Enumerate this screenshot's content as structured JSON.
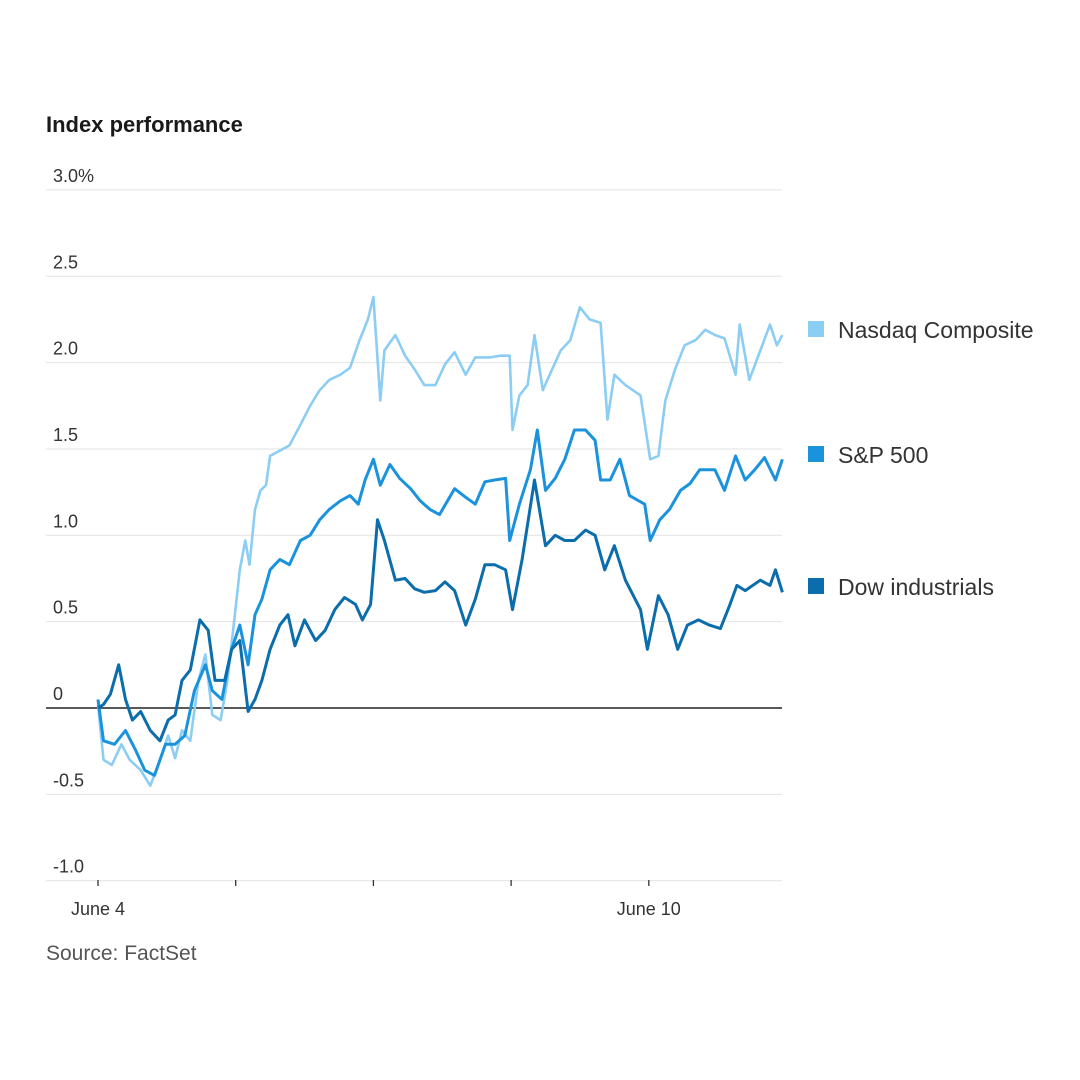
{
  "chart_data": {
    "type": "line",
    "title": "Index performance",
    "source": "Source: FactSet",
    "xlabel": "",
    "ylabel": "",
    "x_unit": "trading days since June 4 open",
    "xlim": [
      0,
      4.97
    ],
    "ylim": [
      -1.0,
      3.0
    ],
    "grid": true,
    "y_ticks": [
      {
        "value": 3.0,
        "label": "3.0%"
      },
      {
        "value": 2.5,
        "label": "2.5"
      },
      {
        "value": 2.0,
        "label": "2.0"
      },
      {
        "value": 1.5,
        "label": "1.5"
      },
      {
        "value": 1.0,
        "label": "1.0"
      },
      {
        "value": 0.5,
        "label": "0.5"
      },
      {
        "value": 0,
        "label": "0"
      },
      {
        "value": -0.5,
        "label": "-0.5"
      },
      {
        "value": -1.0,
        "label": "-1.0"
      }
    ],
    "x_ticks": [
      {
        "value": 0,
        "label": "June 4"
      },
      {
        "value": 1,
        "label": ""
      },
      {
        "value": 2,
        "label": ""
      },
      {
        "value": 3,
        "label": ""
      },
      {
        "value": 4,
        "label": "June 10"
      }
    ],
    "legend_position": "right",
    "series": [
      {
        "name": "Nasdaq Composite",
        "color": "#8ccdf4",
        "x": [
          0,
          0.04,
          0.1,
          0.17,
          0.23,
          0.31,
          0.38,
          0.45,
          0.51,
          0.56,
          0.61,
          0.67,
          0.73,
          0.78,
          0.83,
          0.89,
          0.94,
          0.99,
          1.03,
          1.07,
          1.1,
          1.14,
          1.18,
          1.22,
          1.25,
          1.32,
          1.39,
          1.47,
          1.54,
          1.61,
          1.68,
          1.76,
          1.83,
          1.9,
          1.96,
          2.0,
          2.05,
          2.08,
          2.16,
          2.23,
          2.3,
          2.37,
          2.45,
          2.52,
          2.59,
          2.67,
          2.74,
          2.85,
          2.92,
          2.99,
          3.01,
          3.06,
          3.12,
          3.17,
          3.23,
          3.28,
          3.36,
          3.43,
          3.5,
          3.57,
          3.65,
          3.7,
          3.75,
          3.83,
          3.94,
          4.01,
          4.07,
          4.12,
          4.19,
          4.26,
          4.34,
          4.41,
          4.48,
          4.55,
          4.63,
          4.66,
          4.73,
          4.81,
          4.88,
          4.93,
          4.97
        ],
        "values": [
          0.02,
          -0.3,
          -0.33,
          -0.21,
          -0.3,
          -0.36,
          -0.45,
          -0.3,
          -0.16,
          -0.29,
          -0.13,
          -0.19,
          0.16,
          0.31,
          -0.04,
          -0.07,
          0.16,
          0.51,
          0.8,
          0.97,
          0.83,
          1.15,
          1.26,
          1.29,
          1.46,
          1.49,
          1.52,
          1.64,
          1.75,
          1.84,
          1.9,
          1.93,
          1.97,
          2.13,
          2.25,
          2.38,
          1.78,
          2.07,
          2.16,
          2.04,
          1.96,
          1.87,
          1.87,
          1.99,
          2.06,
          1.93,
          2.03,
          2.03,
          2.04,
          2.04,
          1.61,
          1.81,
          1.87,
          2.16,
          1.84,
          1.93,
          2.07,
          2.13,
          2.32,
          2.25,
          2.23,
          1.67,
          1.93,
          1.87,
          1.81,
          1.44,
          1.46,
          1.78,
          1.96,
          2.1,
          2.13,
          2.19,
          2.16,
          2.14,
          1.93,
          2.22,
          1.9,
          2.07,
          2.22,
          2.1,
          2.16
        ]
      },
      {
        "name": "S&P 500",
        "color": "#1a93dc",
        "x": [
          0,
          0.04,
          0.12,
          0.2,
          0.27,
          0.34,
          0.41,
          0.49,
          0.56,
          0.63,
          0.7,
          0.78,
          0.83,
          0.9,
          0.97,
          1.03,
          1.09,
          1.14,
          1.19,
          1.25,
          1.32,
          1.39,
          1.47,
          1.54,
          1.61,
          1.68,
          1.76,
          1.83,
          1.89,
          1.94,
          2.0,
          2.05,
          2.12,
          2.19,
          2.27,
          2.34,
          2.41,
          2.48,
          2.59,
          2.67,
          2.74,
          2.81,
          2.88,
          2.96,
          2.99,
          3.06,
          3.14,
          3.19,
          3.25,
          3.32,
          3.39,
          3.46,
          3.54,
          3.61,
          3.65,
          3.72,
          3.79,
          3.86,
          3.97,
          4.01,
          4.08,
          4.15,
          4.23,
          4.3,
          4.37,
          4.48,
          4.55,
          4.63,
          4.7,
          4.77,
          4.84,
          4.92,
          4.97
        ],
        "values": [
          0.05,
          -0.19,
          -0.21,
          -0.13,
          -0.24,
          -0.36,
          -0.39,
          -0.21,
          -0.21,
          -0.16,
          0.1,
          0.25,
          0.1,
          0.05,
          0.34,
          0.48,
          0.25,
          0.54,
          0.63,
          0.8,
          0.86,
          0.83,
          0.97,
          1.0,
          1.09,
          1.15,
          1.2,
          1.23,
          1.18,
          1.32,
          1.44,
          1.29,
          1.41,
          1.33,
          1.27,
          1.2,
          1.15,
          1.12,
          1.27,
          1.22,
          1.18,
          1.31,
          1.32,
          1.33,
          0.97,
          1.18,
          1.38,
          1.61,
          1.26,
          1.33,
          1.44,
          1.61,
          1.61,
          1.55,
          1.32,
          1.32,
          1.44,
          1.23,
          1.18,
          0.97,
          1.09,
          1.15,
          1.26,
          1.3,
          1.38,
          1.38,
          1.26,
          1.46,
          1.32,
          1.38,
          1.45,
          1.32,
          1.44
        ]
      },
      {
        "name": "Dow industrials",
        "color": "#0b6dab",
        "x": [
          0,
          0.04,
          0.09,
          0.15,
          0.2,
          0.25,
          0.31,
          0.38,
          0.45,
          0.51,
          0.56,
          0.61,
          0.67,
          0.74,
          0.8,
          0.85,
          0.92,
          0.97,
          1.03,
          1.09,
          1.14,
          1.19,
          1.25,
          1.32,
          1.38,
          1.43,
          1.5,
          1.58,
          1.65,
          1.72,
          1.79,
          1.87,
          1.92,
          1.98,
          2.03,
          2.08,
          2.16,
          2.23,
          2.3,
          2.37,
          2.45,
          2.52,
          2.59,
          2.67,
          2.74,
          2.81,
          2.88,
          2.96,
          3.01,
          3.08,
          3.17,
          3.25,
          3.32,
          3.39,
          3.46,
          3.54,
          3.61,
          3.68,
          3.75,
          3.83,
          3.94,
          3.99,
          4.07,
          4.14,
          4.21,
          4.28,
          4.36,
          4.44,
          4.52,
          4.59,
          4.64,
          4.7,
          4.81,
          4.88,
          4.92,
          4.97
        ],
        "values": [
          0,
          0.02,
          0.08,
          0.25,
          0.05,
          -0.07,
          -0.02,
          -0.13,
          -0.19,
          -0.07,
          -0.04,
          0.16,
          0.22,
          0.51,
          0.45,
          0.16,
          0.16,
          0.34,
          0.39,
          -0.02,
          0.05,
          0.16,
          0.34,
          0.48,
          0.54,
          0.36,
          0.51,
          0.39,
          0.45,
          0.57,
          0.64,
          0.6,
          0.51,
          0.6,
          1.09,
          0.97,
          0.74,
          0.75,
          0.69,
          0.67,
          0.68,
          0.73,
          0.68,
          0.48,
          0.63,
          0.83,
          0.83,
          0.8,
          0.57,
          0.86,
          1.32,
          0.94,
          1.0,
          0.97,
          0.97,
          1.03,
          1.0,
          0.8,
          0.94,
          0.74,
          0.57,
          0.34,
          0.65,
          0.54,
          0.34,
          0.48,
          0.51,
          0.48,
          0.46,
          0.6,
          0.71,
          0.68,
          0.74,
          0.71,
          0.8,
          0.67
        ]
      }
    ]
  }
}
